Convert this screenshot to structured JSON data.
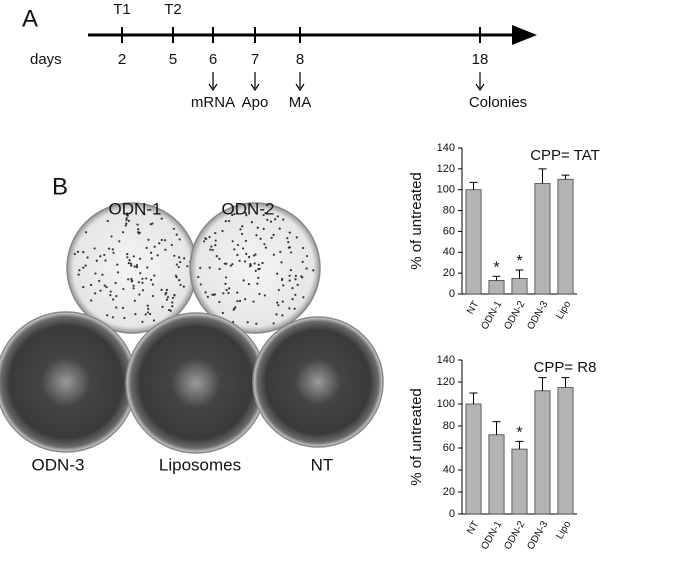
{
  "panel_a": {
    "label": "A",
    "axis_label": "days",
    "timepoints": [
      {
        "day": 2,
        "above": "T1"
      },
      {
        "day": 5,
        "above": "T2"
      },
      {
        "day": 6,
        "below": "mRNA"
      },
      {
        "day": 7,
        "below": "Apo"
      },
      {
        "day": 8,
        "below": "MA"
      },
      {
        "day": 18,
        "below": "Colonies"
      }
    ]
  },
  "panel_b": {
    "label": "B",
    "plates": [
      "ODN-1",
      "ODN-2",
      "ODN-3",
      "Liposomes",
      "NT"
    ]
  },
  "chart_data": [
    {
      "type": "bar",
      "title": "CPP= TAT",
      "y_label": "% of untreated",
      "categories": [
        "NT",
        "ODN-1",
        "ODN-2",
        "ODN-3",
        "Lipo"
      ],
      "values": [
        100,
        13,
        15,
        106,
        110
      ],
      "errors": [
        7,
        4,
        8,
        14,
        4
      ],
      "significance": [
        null,
        "*",
        "*",
        null,
        null
      ],
      "color": "#b3b3b3",
      "ylim": [
        0,
        140
      ],
      "yticks": [
        0,
        20,
        40,
        60,
        80,
        100,
        120,
        140
      ]
    },
    {
      "type": "bar",
      "title": "CPP= R8",
      "y_label": "% of untreated",
      "categories": [
        "NT",
        "ODN-1",
        "ODN-2",
        "ODN-3",
        "Lipo"
      ],
      "values": [
        100,
        72,
        59,
        112,
        115
      ],
      "errors": [
        10,
        12,
        7,
        12,
        9
      ],
      "significance": [
        null,
        null,
        "*",
        null,
        null
      ],
      "color": "#b3b3b3",
      "ylim": [
        0,
        140
      ],
      "yticks": [
        0,
        20,
        40,
        60,
        80,
        100,
        120,
        140
      ]
    }
  ]
}
